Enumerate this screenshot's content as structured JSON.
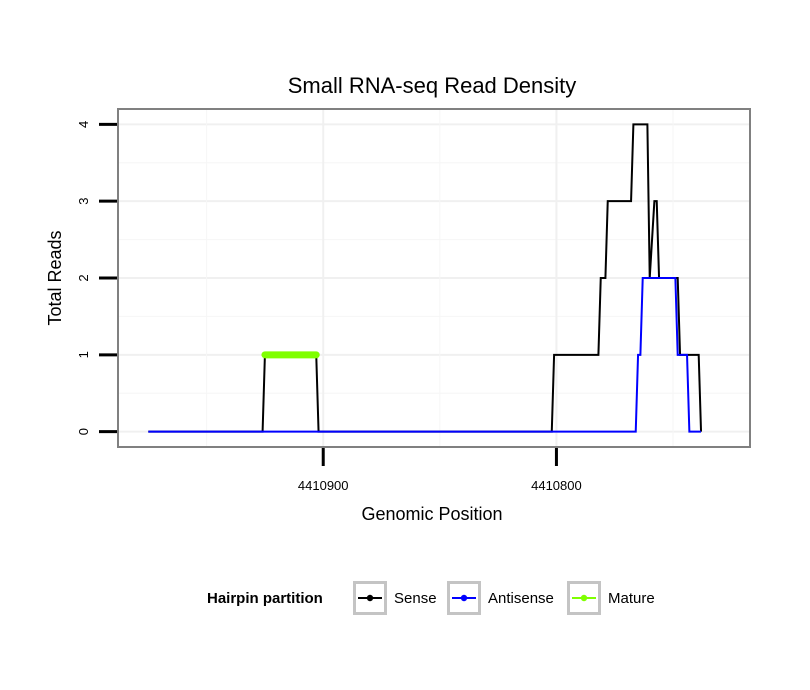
{
  "chart_data": {
    "type": "line",
    "title": "Small RNA-seq Read Density",
    "xlabel": "Genomic Position",
    "ylabel": "Total Reads",
    "xlim": [
      4410988,
      4410717
    ],
    "ylim": [
      -0.2,
      4.2
    ],
    "x_reversed": true,
    "xticks": [
      4410900,
      4410800
    ],
    "xtick_labels": [
      "4410900",
      "4410800"
    ],
    "yticks": [
      0,
      1,
      2,
      3,
      4
    ],
    "ytick_labels": [
      "0",
      "1",
      "2",
      "3",
      "4"
    ],
    "grid": true,
    "legend": {
      "title": "Hairpin partition",
      "position": "bottom",
      "entries": [
        "Sense",
        "Antisense",
        "Mature"
      ]
    },
    "series": [
      {
        "name": "Sense",
        "color": "#000000",
        "points": [
          [
            4410975,
            0
          ],
          [
            4410926,
            0
          ],
          [
            4410925,
            1
          ],
          [
            4410903,
            1
          ],
          [
            4410902,
            0
          ],
          [
            4410802,
            0
          ],
          [
            4410801,
            1
          ],
          [
            4410782,
            1
          ],
          [
            4410781,
            2
          ],
          [
            4410779,
            2
          ],
          [
            4410778,
            3
          ],
          [
            4410768,
            3
          ],
          [
            4410767,
            4
          ],
          [
            4410761,
            4
          ],
          [
            4410760,
            2
          ],
          [
            4410758,
            3
          ],
          [
            4410757,
            3
          ],
          [
            4410756,
            2
          ],
          [
            4410748,
            2
          ],
          [
            4410747,
            1
          ],
          [
            4410739,
            1
          ],
          [
            4410738,
            0
          ]
        ]
      },
      {
        "name": "Antisense",
        "color": "#0000ff",
        "points": [
          [
            4410975,
            0
          ],
          [
            4410766,
            0
          ],
          [
            4410765,
            1
          ],
          [
            4410764,
            1
          ],
          [
            4410763,
            2
          ],
          [
            4410749,
            2
          ],
          [
            4410748,
            1
          ],
          [
            4410744,
            1
          ],
          [
            4410743,
            0
          ],
          [
            4410738,
            0
          ]
        ]
      },
      {
        "name": "Mature",
        "color": "#7fff00",
        "points": [
          [
            4410925,
            1
          ],
          [
            4410903,
            1
          ]
        ]
      }
    ]
  }
}
